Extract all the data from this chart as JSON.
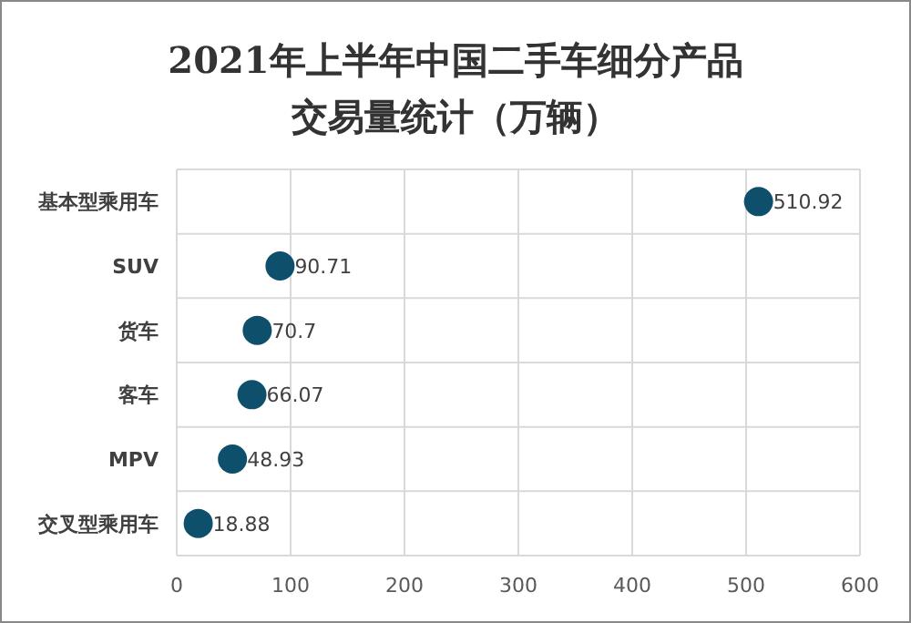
{
  "chart_data": {
    "type": "scatter",
    "orientation": "horizontal",
    "title": "2021年上半年中国二手车细分产品交易量统计（万辆）",
    "categories": [
      "基本型乘用车",
      "SUV",
      "货车",
      "客车",
      "MPV",
      "交叉型乘用车"
    ],
    "values": [
      510.92,
      90.71,
      70.7,
      66.07,
      48.93,
      18.88
    ],
    "color": "#0e4f6b",
    "marker": "circle",
    "data_labels": true,
    "xlim": [
      0,
      600
    ],
    "xticks": [
      0,
      100,
      200,
      300,
      400,
      500,
      600
    ],
    "grid": true
  }
}
